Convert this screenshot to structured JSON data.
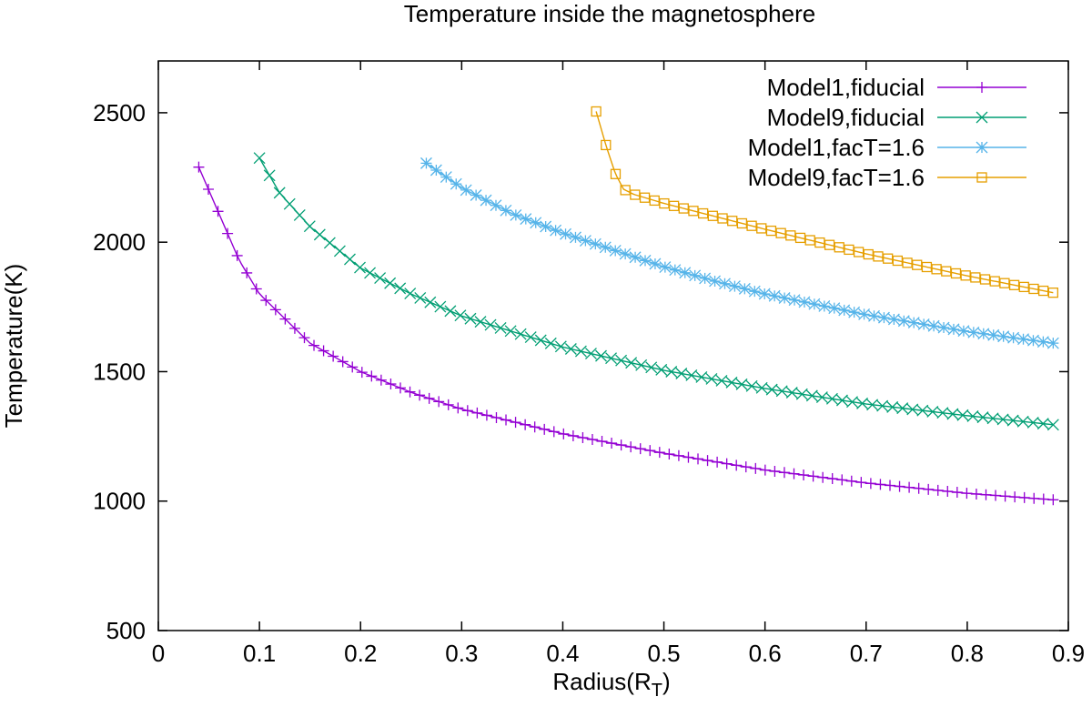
{
  "chart_data": {
    "type": "line",
    "title": "Temperature inside the magnetosphere",
    "xlabel": "Radius(R",
    "xlabel_sub": "T",
    "xlabel_close": ")",
    "ylabel": "Temperature(K)",
    "xlim": [
      0,
      0.9
    ],
    "ylim": [
      500,
      2700
    ],
    "xticks": [
      0,
      0.1,
      0.2,
      0.3,
      0.4,
      0.5,
      0.6,
      0.7,
      0.8,
      0.9
    ],
    "xtick_labels": [
      "0",
      "0.1",
      "0.2",
      "0.3",
      "0.4",
      "0.5",
      "0.6",
      "0.7",
      "0.8",
      "0.9"
    ],
    "yticks": [
      500,
      1000,
      1500,
      2000,
      2500
    ],
    "ytick_labels": [
      "500",
      "1000",
      "1500",
      "2000",
      "2500"
    ],
    "grid": false,
    "legend_position": "top-right",
    "series": [
      {
        "name": "Model1,fiducial",
        "color": "#9400d3",
        "marker": "plus",
        "x_start": 0.04,
        "x_end": 0.885,
        "n_points": 90,
        "points": [
          [
            0.04,
            2290
          ],
          [
            0.06,
            2110
          ],
          [
            0.08,
            1930
          ],
          [
            0.1,
            1800
          ],
          [
            0.15,
            1610
          ],
          [
            0.2,
            1500
          ],
          [
            0.25,
            1420
          ],
          [
            0.3,
            1355
          ],
          [
            0.4,
            1260
          ],
          [
            0.5,
            1185
          ],
          [
            0.6,
            1120
          ],
          [
            0.7,
            1070
          ],
          [
            0.8,
            1030
          ],
          [
            0.885,
            1005
          ]
        ]
      },
      {
        "name": "Model9,fiducial",
        "color": "#009e73",
        "marker": "cross",
        "x_start": 0.1,
        "x_end": 0.885,
        "n_points": 80,
        "points": [
          [
            0.1,
            2325
          ],
          [
            0.12,
            2190
          ],
          [
            0.15,
            2060
          ],
          [
            0.2,
            1900
          ],
          [
            0.25,
            1800
          ],
          [
            0.3,
            1715
          ],
          [
            0.4,
            1595
          ],
          [
            0.5,
            1505
          ],
          [
            0.6,
            1435
          ],
          [
            0.7,
            1375
          ],
          [
            0.8,
            1330
          ],
          [
            0.885,
            1295
          ]
        ]
      },
      {
        "name": "Model1,facT=1.6",
        "color": "#56b4e9",
        "marker": "star",
        "x_start": 0.265,
        "x_end": 0.885,
        "n_points": 64,
        "points": [
          [
            0.265,
            2305
          ],
          [
            0.3,
            2210
          ],
          [
            0.35,
            2110
          ],
          [
            0.4,
            2035
          ],
          [
            0.45,
            1970
          ],
          [
            0.5,
            1905
          ],
          [
            0.55,
            1850
          ],
          [
            0.6,
            1800
          ],
          [
            0.7,
            1720
          ],
          [
            0.8,
            1655
          ],
          [
            0.885,
            1610
          ]
        ]
      },
      {
        "name": "Model9,facT=1.6",
        "color": "#e69f00",
        "marker": "square",
        "x_start": 0.433,
        "x_end": 0.885,
        "n_points": 48,
        "points": [
          [
            0.433,
            2505
          ],
          [
            0.443,
            2370
          ],
          [
            0.452,
            2265
          ],
          [
            0.46,
            2205
          ],
          [
            0.47,
            2185
          ],
          [
            0.5,
            2150
          ],
          [
            0.55,
            2100
          ],
          [
            0.6,
            2050
          ],
          [
            0.7,
            1955
          ],
          [
            0.8,
            1870
          ],
          [
            0.885,
            1805
          ]
        ]
      }
    ]
  }
}
